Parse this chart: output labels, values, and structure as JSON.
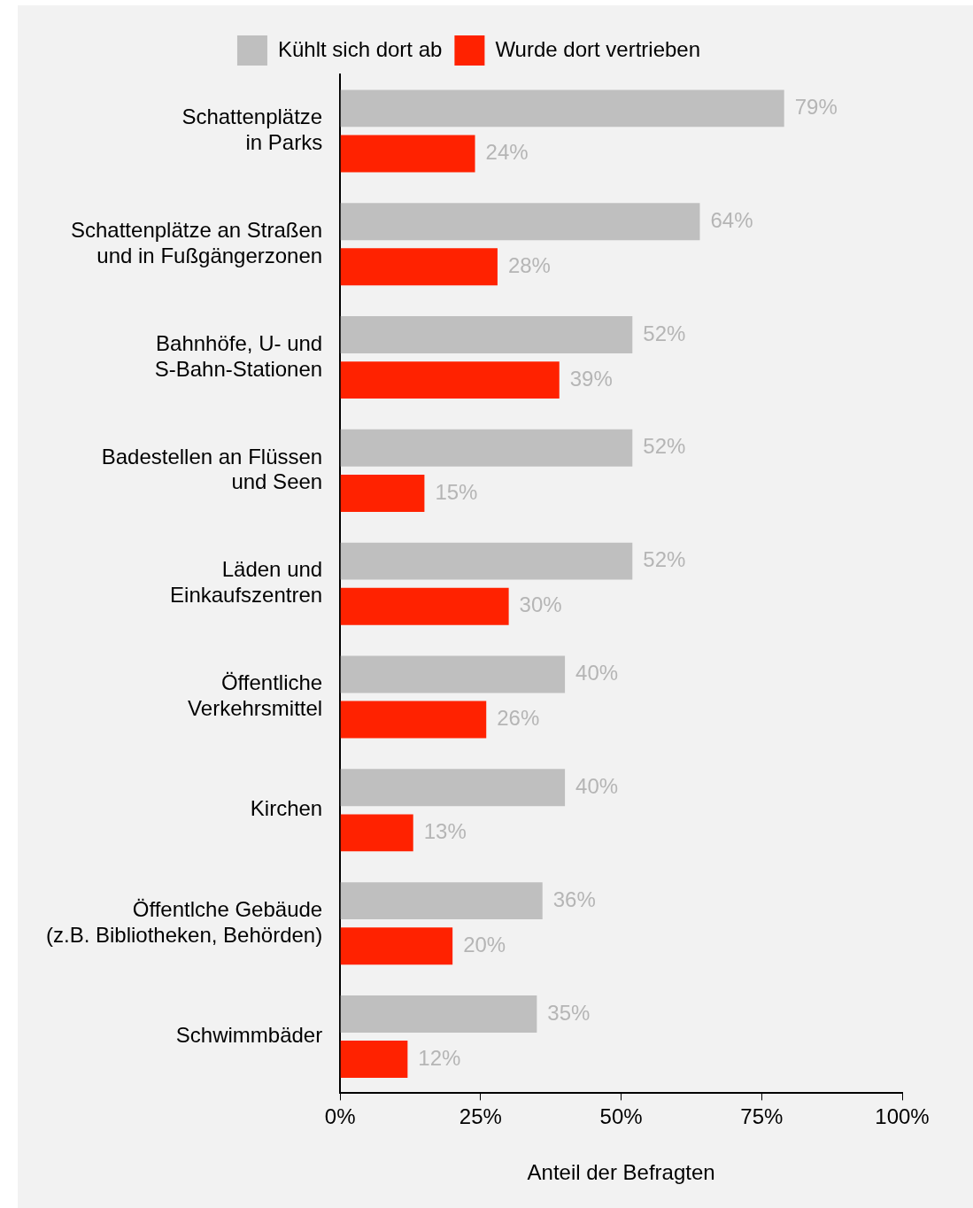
{
  "chart_data": {
    "type": "bar",
    "orientation": "horizontal",
    "xlabel": "Anteil der Befragten",
    "categories": [
      "Schattenplätze\nin Parks",
      "Schattenplätze an Straßen\nund in Fußgängerzonen",
      "Bahnhöfe, U- und\nS-Bahn-Stationen",
      "Badestellen an Flüssen\nund Seen",
      "Läden und\nEinkaufszentren",
      "Öffentliche\nVerkehrsmittel",
      "Kirchen",
      "Öffentlche Gebäude\n(z.B. Bibliotheken, Behörden)",
      "Schwimmbäder"
    ],
    "series": [
      {
        "name": "Kühlt sich dort ab",
        "color": "#bfbfbf",
        "values": [
          79,
          64,
          52,
          52,
          52,
          40,
          40,
          36,
          35
        ],
        "value_labels": [
          "79%",
          "64%",
          "52%",
          "52%",
          "52%",
          "40%",
          "40%",
          "36%",
          "35%"
        ]
      },
      {
        "name": "Wurde dort vertrieben",
        "color": "#ff2200",
        "values": [
          24,
          28,
          39,
          15,
          30,
          26,
          13,
          20,
          12
        ],
        "value_labels": [
          "24%",
          "28%",
          "39%",
          "15%",
          "30%",
          "26%",
          "13%",
          "20%",
          "12%"
        ]
      }
    ],
    "xlim": [
      0,
      100
    ],
    "xticks": [
      {
        "value": 0,
        "label": "0%"
      },
      {
        "value": 25,
        "label": "25%"
      },
      {
        "value": 50,
        "label": "50%"
      },
      {
        "value": 75,
        "label": "75%"
      },
      {
        "value": 100,
        "label": "100%"
      }
    ],
    "grid": false,
    "legend": "top"
  }
}
